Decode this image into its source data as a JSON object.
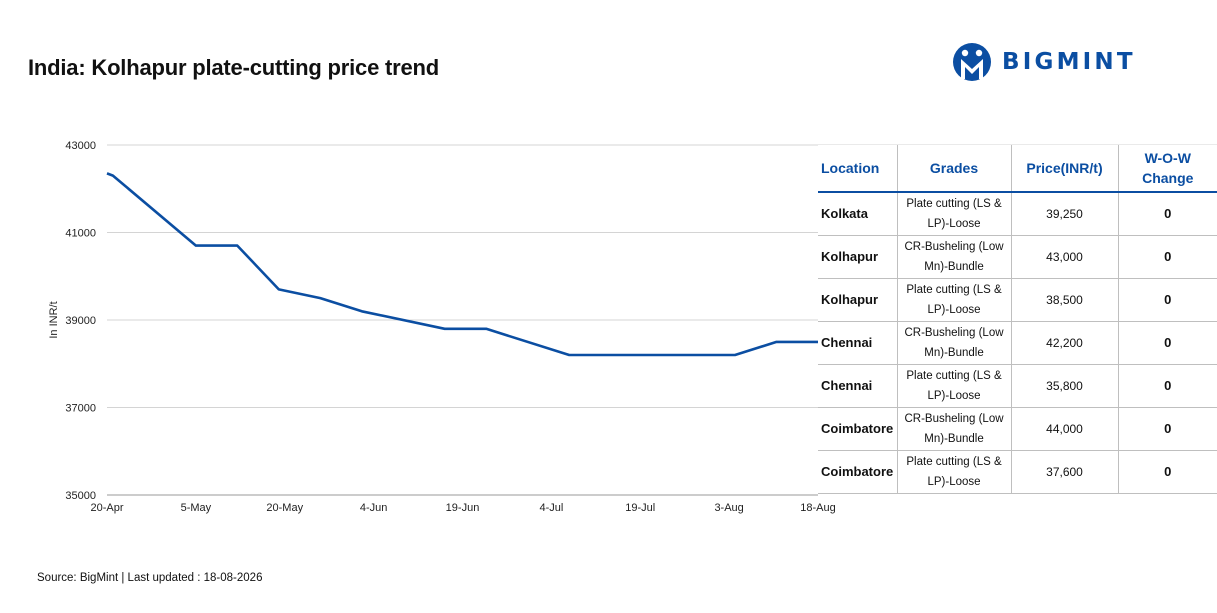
{
  "header": {
    "title": "India: Kolhapur plate-cutting price trend",
    "brand": "BIGMINT",
    "brand_color": "#0b4ea2"
  },
  "chart_data": {
    "type": "line",
    "title": "India: Kolhapur plate-cutting price trend",
    "xlabel": "",
    "ylabel": "In INR/t",
    "ylim": [
      35000,
      43000
    ],
    "yticks": [
      35000,
      37000,
      39000,
      41000,
      43000
    ],
    "xtick_labels": [
      "20-Apr",
      "5-May",
      "20-May",
      "4-Jun",
      "19-Jun",
      "4-Jul",
      "19-Jul",
      "3-Aug",
      "18-Aug"
    ],
    "grid": true,
    "line_color": "#0b4ea2",
    "series": [
      {
        "x": [
          "2026-04-20",
          "2026-04-21",
          "2026-05-05",
          "2026-05-12",
          "2026-05-19",
          "2026-05-26",
          "2026-06-02",
          "2026-06-16",
          "2026-06-23",
          "2026-07-07",
          "2026-07-28",
          "2026-08-04",
          "2026-08-11",
          "2026-08-18"
        ],
        "values": [
          42350,
          42300,
          40700,
          40700,
          39700,
          39500,
          39200,
          38800,
          38800,
          38200,
          38200,
          38200,
          38500,
          38500
        ]
      }
    ]
  },
  "table": {
    "headers": [
      "Location",
      "Grades",
      "Price(INR/t)",
      "W-O-W Change"
    ],
    "rows": [
      {
        "location": "Kolkata",
        "grade": "Plate cutting (LS & LP)-Loose",
        "price": "39,250",
        "change": "0"
      },
      {
        "location": "Kolhapur",
        "grade": "CR-Busheling (Low Mn)-Bundle",
        "price": "43,000",
        "change": "0"
      },
      {
        "location": "Kolhapur",
        "grade": "Plate cutting (LS & LP)-Loose",
        "price": "38,500",
        "change": "0"
      },
      {
        "location": "Chennai",
        "grade": "CR-Busheling (Low Mn)-Bundle",
        "price": "42,200",
        "change": "0"
      },
      {
        "location": "Chennai",
        "grade": "Plate cutting (LS & LP)-Loose",
        "price": "35,800",
        "change": "0"
      },
      {
        "location": "Coimbatore",
        "grade": "CR-Busheling (Low Mn)-Bundle",
        "price": "44,000",
        "change": "0"
      },
      {
        "location": "Coimbatore",
        "grade": "Plate cutting (LS & LP)-Loose",
        "price": "37,600",
        "change": "0"
      }
    ]
  },
  "footer": {
    "source": "Source: BigMint | Last updated : 18-08-2026"
  }
}
